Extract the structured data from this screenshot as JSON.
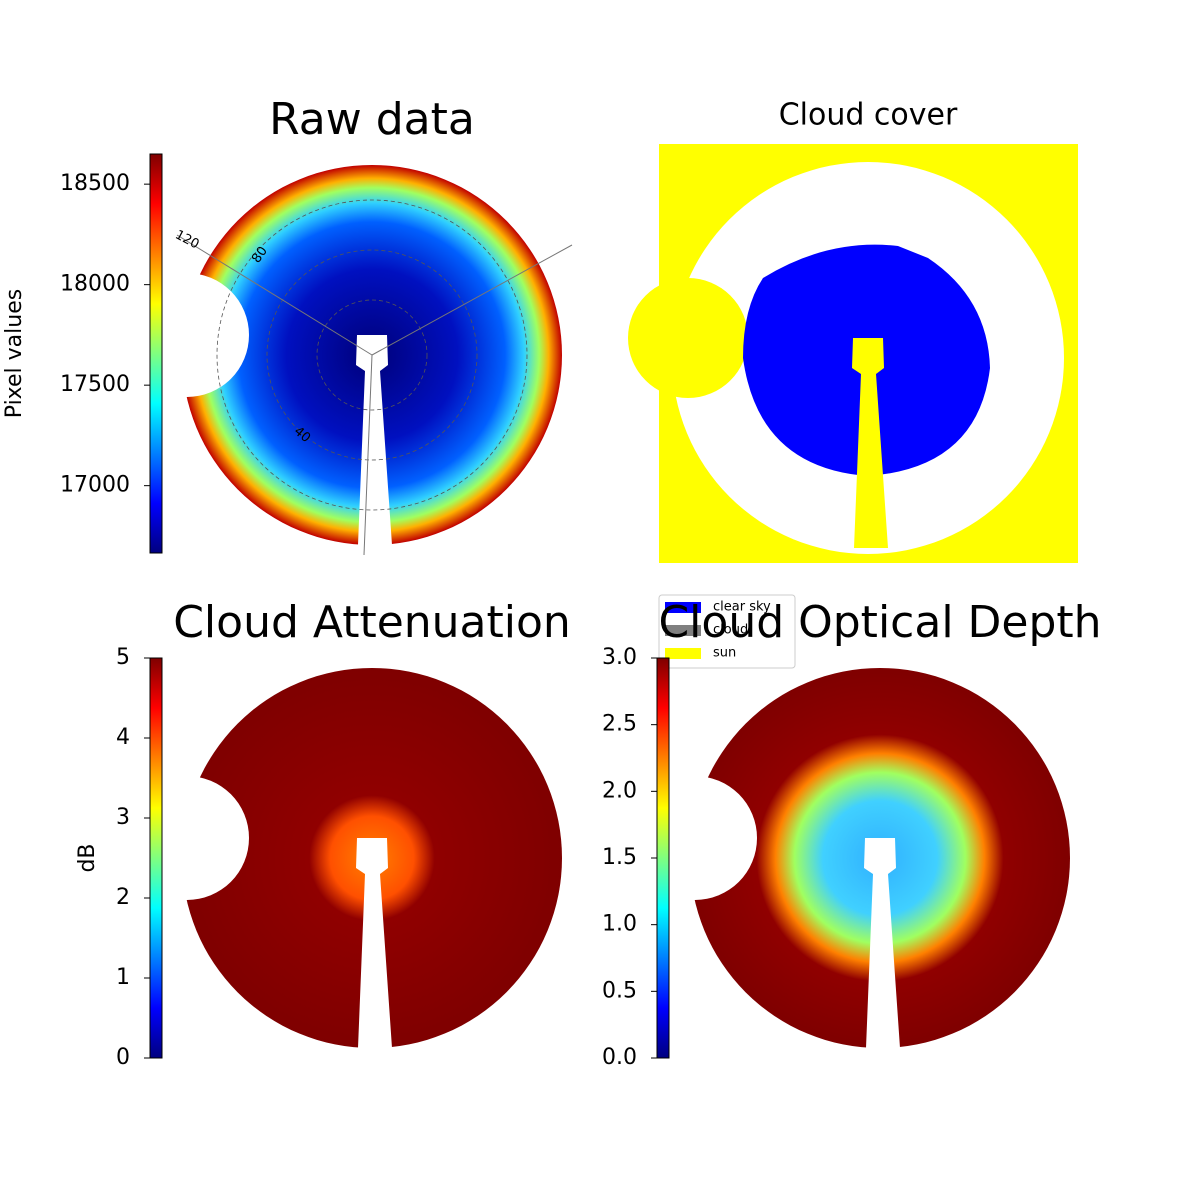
{
  "chart_data": [
    {
      "type": "heatmap",
      "title": "Raw data",
      "cmap": "jet",
      "colorbar_label": "Pixel values",
      "clim": [
        16665,
        18650
      ],
      "cticks": [
        17000,
        17500,
        18000,
        18500
      ],
      "annotations": [
        "120",
        "80",
        "40"
      ]
    },
    {
      "type": "category-map",
      "title": "Cloud cover",
      "series": [
        {
          "name": "clear sky",
          "color": "#0000ff"
        },
        {
          "name": "cloud",
          "color": "#808080"
        },
        {
          "name": "sun",
          "color": "#ffff00"
        }
      ]
    },
    {
      "type": "heatmap",
      "title": "Cloud Attenuation",
      "cmap": "jet",
      "colorbar_label": "dB",
      "clim": [
        0,
        5
      ],
      "cticks": [
        0,
        1,
        2,
        3,
        4,
        5
      ]
    },
    {
      "type": "heatmap",
      "title": "Cloud Optical Depth",
      "cmap": "jet",
      "clim": [
        0,
        3
      ],
      "cticks": [
        {
          "value": 0,
          "label": "0.0"
        },
        0.5,
        {
          "value": 1,
          "label": "1.0"
        },
        1.5,
        {
          "value": 2,
          "label": "2.0"
        },
        2.5,
        {
          "value": 3,
          "label": "3.0"
        }
      ]
    }
  ]
}
